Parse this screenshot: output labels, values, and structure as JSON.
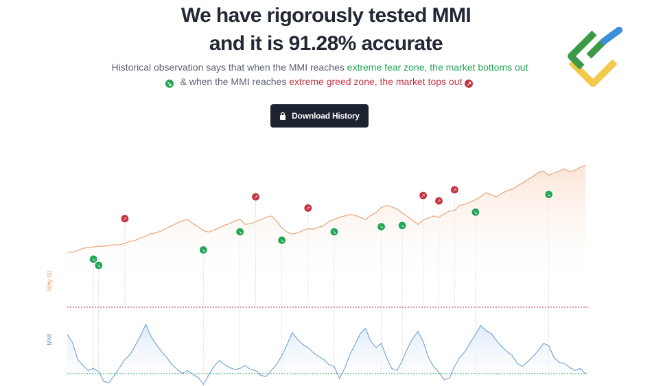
{
  "header": {
    "line1": "We have rigorously tested MMI",
    "line2": "and it is 91.28% accurate"
  },
  "subtitle": {
    "part1": "Historical observation says that when the MMI reaches ",
    "fear_zone": "extreme fear zone, the market bottoms out",
    "part2": " & when the MMI reaches ",
    "greed_zone": "extreme greed zone, the market tops out"
  },
  "download_button": {
    "label": "Download History",
    "icon": "lock-icon"
  },
  "logo": {
    "icon": "brand-logo-icon",
    "colors": [
      "#3a9a48",
      "#f2c94c",
      "#3b8fd9"
    ]
  },
  "colors": {
    "nifty_line": "#e8a57a",
    "nifty_fill": "#fbe3d3",
    "mmi_line": "#6f9fd8",
    "mmi_fill": "#d9e8f7",
    "greed": "#c53340",
    "fear": "#22a554",
    "guide": "#bfc4cc"
  },
  "chart_data": {
    "type": "line",
    "series": [
      {
        "name": "Nifty 50",
        "values": [
          30,
          29,
          32,
          35,
          36,
          37,
          38,
          38,
          39,
          40,
          40,
          42,
          45,
          46,
          50,
          52,
          56,
          57,
          60,
          64,
          67,
          71,
          74,
          76,
          70,
          66,
          60,
          58,
          61,
          64,
          68,
          70,
          74,
          76,
          69,
          70,
          73,
          76,
          79,
          81,
          74,
          64,
          58,
          55,
          57,
          60,
          63,
          62,
          65,
          67,
          73,
          76,
          79,
          81,
          83,
          82,
          79,
          76,
          82,
          86,
          93,
          96,
          94,
          91,
          85,
          80,
          75,
          69,
          75,
          78,
          81,
          79,
          84,
          88,
          89,
          96,
          98,
          101,
          104,
          109,
          114,
          111,
          108,
          113,
          117,
          119,
          124,
          128,
          133,
          137,
          143,
          145,
          139,
          142,
          145,
          148,
          144,
          146,
          150,
          153
        ]
      },
      {
        "name": "MMI",
        "values": [
          70,
          62,
          45,
          39,
          34,
          36,
          33,
          23,
          22,
          29,
          37,
          45,
          50,
          59,
          69,
          80,
          68,
          60,
          53,
          47,
          40,
          35,
          31,
          34,
          30,
          27,
          20,
          29,
          38,
          44,
          40,
          37,
          35,
          36,
          39,
          35,
          34,
          29,
          28,
          34,
          40,
          49,
          60,
          72,
          65,
          60,
          57,
          52,
          48,
          45,
          40,
          38,
          26,
          36,
          50,
          60,
          71,
          76,
          63,
          57,
          61,
          47,
          36,
          34,
          44,
          56,
          66,
          73,
          63,
          47,
          38,
          32,
          25,
          26,
          38,
          47,
          53,
          62,
          70,
          79,
          74,
          71,
          64,
          58,
          53,
          49,
          41,
          38,
          43,
          48,
          54,
          61,
          59,
          47,
          42,
          41,
          37,
          34,
          36,
          31
        ]
      }
    ],
    "y_axis_labels": [
      "Nifty 50",
      "MMI"
    ],
    "reference_lines": [
      "extreme greed zone",
      "extreme fear zone"
    ],
    "markers": [
      {
        "type": "fear",
        "index": 5
      },
      {
        "type": "fear",
        "index": 6
      },
      {
        "type": "greed",
        "index": 11
      },
      {
        "type": "fear",
        "index": 26
      },
      {
        "type": "fear",
        "index": 33
      },
      {
        "type": "greed",
        "index": 36
      },
      {
        "type": "fear",
        "index": 41
      },
      {
        "type": "greed",
        "index": 46
      },
      {
        "type": "fear",
        "index": 51
      },
      {
        "type": "fear",
        "index": 60
      },
      {
        "type": "fear",
        "index": 64
      },
      {
        "type": "greed",
        "index": 68
      },
      {
        "type": "greed",
        "index": 71
      },
      {
        "type": "greed",
        "index": 74
      },
      {
        "type": "fear",
        "index": 78
      },
      {
        "type": "fear",
        "index": 92
      }
    ],
    "grid": false
  }
}
